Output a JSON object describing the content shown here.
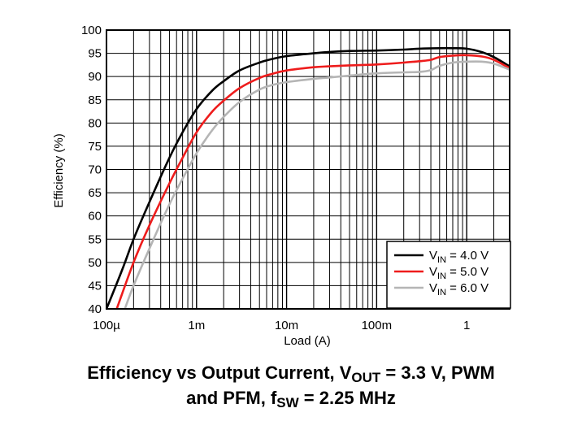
{
  "chart_data": {
    "type": "line",
    "xlabel": "Load (A)",
    "ylabel": "Efficiency (%)",
    "x_scale": "log",
    "xlim": [
      0.0001,
      3
    ],
    "ylim": [
      40,
      100
    ],
    "grid": true,
    "legend_position": "bottom-right",
    "x_ticks": [
      {
        "value": 0.0001,
        "label": "100µ"
      },
      {
        "value": 0.001,
        "label": "1m"
      },
      {
        "value": 0.01,
        "label": "10m"
      },
      {
        "value": 0.1,
        "label": "100m"
      },
      {
        "value": 1,
        "label": "1"
      }
    ],
    "y_ticks": [
      40,
      45,
      50,
      55,
      60,
      65,
      70,
      75,
      80,
      85,
      90,
      95,
      100
    ],
    "series": [
      {
        "name_main": "V",
        "name_sub": "IN",
        "name_rest": " = 4.0 V",
        "color": "#000000",
        "x": [
          0.0001,
          0.00015,
          0.0002,
          0.0003,
          0.0005,
          0.0007,
          0.001,
          0.0015,
          0.002,
          0.003,
          0.005,
          0.007,
          0.01,
          0.02,
          0.03,
          0.05,
          0.1,
          0.2,
          0.3,
          0.5,
          0.7,
          1,
          1.5,
          2,
          3
        ],
        "y": [
          40,
          48.5,
          55,
          63,
          72.5,
          78,
          83,
          87,
          89,
          91.3,
          93,
          93.8,
          94.4,
          95,
          95.3,
          95.5,
          95.6,
          95.8,
          96,
          96.1,
          96.1,
          96,
          95.2,
          94.2,
          92.2
        ]
      },
      {
        "name_main": "V",
        "name_sub": "IN",
        "name_rest": " = 5.0 V",
        "color": "#ee1c1c",
        "x": [
          0.00013,
          0.0002,
          0.0003,
          0.0005,
          0.0007,
          0.001,
          0.0015,
          0.002,
          0.003,
          0.005,
          0.007,
          0.01,
          0.02,
          0.03,
          0.05,
          0.1,
          0.2,
          0.3,
          0.4,
          0.5,
          0.7,
          1,
          1.5,
          2,
          3
        ],
        "y": [
          40,
          50,
          58,
          67,
          72.5,
          78,
          82.5,
          84.8,
          87.5,
          89.7,
          90.6,
          91.3,
          92,
          92.2,
          92.4,
          92.6,
          93,
          93.3,
          93.6,
          94.2,
          94.5,
          94.6,
          94.3,
          93.6,
          91.8
        ]
      },
      {
        "name_main": "V",
        "name_sub": "IN",
        "name_rest": " = 6.0 V",
        "color": "#b5b5b5",
        "x": [
          0.00016,
          0.0002,
          0.0003,
          0.0005,
          0.0007,
          0.001,
          0.0015,
          0.002,
          0.003,
          0.005,
          0.007,
          0.01,
          0.02,
          0.03,
          0.05,
          0.1,
          0.2,
          0.3,
          0.4,
          0.5,
          0.7,
          1,
          1.5,
          2,
          3
        ],
        "y": [
          40,
          45,
          53,
          62.5,
          68,
          73.5,
          78.5,
          81.3,
          84.5,
          87.2,
          88.2,
          88.8,
          89.5,
          89.8,
          90.2,
          90.7,
          90.9,
          91,
          91.4,
          92.3,
          93,
          93.2,
          93.2,
          92.8,
          91.5
        ]
      }
    ]
  },
  "caption": {
    "line1_a": "Efficiency vs Output Current, V",
    "line1_sub": "OUT",
    "line1_b": " = 3.3 V, PWM",
    "line2_a": "and PFM, f",
    "line2_sub": "SW",
    "line2_b": " = 2.25 MHz"
  }
}
